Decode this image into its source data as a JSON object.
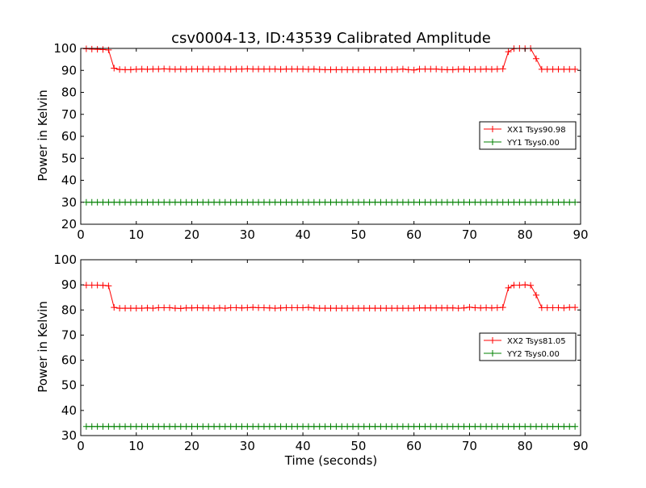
{
  "chart_data": [
    {
      "type": "line",
      "title": "csv0004-13, ID:43539 Calibrated Amplitude",
      "xlabel": "",
      "ylabel": "Power in Kelvin",
      "xlim": [
        0,
        90
      ],
      "ylim": [
        20,
        100
      ],
      "xticks": [
        0,
        10,
        20,
        30,
        40,
        50,
        60,
        70,
        80,
        90
      ],
      "yticks": [
        20,
        30,
        40,
        50,
        60,
        70,
        80,
        90,
        100
      ],
      "legend_position": "right",
      "series": [
        {
          "name": "XX1 Tsys90.98",
          "color": "#ff0000",
          "x": [
            1,
            2,
            3,
            4,
            5,
            6,
            7,
            8,
            9,
            10,
            11,
            12,
            13,
            14,
            15,
            16,
            17,
            18,
            19,
            20,
            21,
            22,
            23,
            24,
            25,
            26,
            27,
            28,
            29,
            30,
            31,
            32,
            33,
            34,
            35,
            36,
            37,
            38,
            39,
            40,
            41,
            42,
            43,
            44,
            45,
            46,
            47,
            48,
            49,
            50,
            51,
            52,
            53,
            54,
            55,
            56,
            57,
            58,
            59,
            60,
            61,
            62,
            63,
            64,
            65,
            66,
            67,
            68,
            69,
            70,
            71,
            72,
            73,
            74,
            75,
            76,
            77,
            78,
            79,
            80,
            81,
            82,
            83,
            84,
            85,
            86,
            87,
            88,
            89
          ],
          "y": [
            99.8,
            99.7,
            99.6,
            99.5,
            99.3,
            91.0,
            90.4,
            90.3,
            90.3,
            90.5,
            90.6,
            90.5,
            90.6,
            90.6,
            90.7,
            90.6,
            90.5,
            90.6,
            90.5,
            90.6,
            90.6,
            90.6,
            90.6,
            90.5,
            90.6,
            90.6,
            90.5,
            90.6,
            90.6,
            90.7,
            90.6,
            90.6,
            90.6,
            90.6,
            90.6,
            90.5,
            90.6,
            90.6,
            90.6,
            90.6,
            90.5,
            90.6,
            90.4,
            90.3,
            90.3,
            90.3,
            90.3,
            90.3,
            90.3,
            90.3,
            90.3,
            90.3,
            90.3,
            90.3,
            90.3,
            90.3,
            90.4,
            90.6,
            90.3,
            90.2,
            90.6,
            90.6,
            90.6,
            90.6,
            90.4,
            90.3,
            90.3,
            90.5,
            90.6,
            90.4,
            90.5,
            90.5,
            90.6,
            90.5,
            90.6,
            90.7,
            98.5,
            99.9,
            100.0,
            99.9,
            100.0,
            95.3,
            90.5,
            90.5,
            90.5,
            90.5,
            90.5,
            90.5,
            90.5
          ]
        },
        {
          "name": "YY1 Tsys0.00",
          "color": "#008000",
          "x": [
            1,
            2,
            3,
            4,
            5,
            6,
            7,
            8,
            9,
            10,
            11,
            12,
            13,
            14,
            15,
            16,
            17,
            18,
            19,
            20,
            21,
            22,
            23,
            24,
            25,
            26,
            27,
            28,
            29,
            30,
            31,
            32,
            33,
            34,
            35,
            36,
            37,
            38,
            39,
            40,
            41,
            42,
            43,
            44,
            45,
            46,
            47,
            48,
            49,
            50,
            51,
            52,
            53,
            54,
            55,
            56,
            57,
            58,
            59,
            60,
            61,
            62,
            63,
            64,
            65,
            66,
            67,
            68,
            69,
            70,
            71,
            72,
            73,
            74,
            75,
            76,
            77,
            78,
            79,
            80,
            81,
            82,
            83,
            84,
            85,
            86,
            87,
            88,
            89
          ],
          "y": [
            30,
            30,
            30,
            30,
            30,
            30,
            30,
            30,
            30,
            30,
            30,
            30,
            30,
            30,
            30,
            30,
            30,
            30,
            30,
            30,
            30,
            30,
            30,
            30,
            30,
            30,
            30,
            30,
            30,
            30,
            30,
            30,
            30,
            30,
            30,
            30,
            30,
            30,
            30,
            30,
            30,
            30,
            30,
            30,
            30,
            30,
            30,
            30,
            30,
            30,
            30,
            30,
            30,
            30,
            30,
            30,
            30,
            30,
            30,
            30,
            30,
            30,
            30,
            30,
            30,
            30,
            30,
            30,
            30,
            30,
            30,
            30,
            30,
            30,
            30,
            30,
            30,
            30,
            30,
            30,
            30,
            30,
            30,
            30,
            30,
            30,
            30,
            30,
            30
          ]
        }
      ]
    },
    {
      "type": "line",
      "title": "",
      "xlabel": "Time (seconds)",
      "ylabel": "Power in Kelvin",
      "xlim": [
        0,
        90
      ],
      "ylim": [
        30,
        100
      ],
      "xticks": [
        0,
        10,
        20,
        30,
        40,
        50,
        60,
        70,
        80,
        90
      ],
      "yticks": [
        30,
        40,
        50,
        60,
        70,
        80,
        90,
        100
      ],
      "legend_position": "right",
      "series": [
        {
          "name": "XX2 Tsys81.05",
          "color": "#ff0000",
          "x": [
            1,
            2,
            3,
            4,
            5,
            6,
            7,
            8,
            9,
            10,
            11,
            12,
            13,
            14,
            15,
            16,
            17,
            18,
            19,
            20,
            21,
            22,
            23,
            24,
            25,
            26,
            27,
            28,
            29,
            30,
            31,
            32,
            33,
            34,
            35,
            36,
            37,
            38,
            39,
            40,
            41,
            42,
            43,
            44,
            45,
            46,
            47,
            48,
            49,
            50,
            51,
            52,
            53,
            54,
            55,
            56,
            57,
            58,
            59,
            60,
            61,
            62,
            63,
            64,
            65,
            66,
            67,
            68,
            69,
            70,
            71,
            72,
            73,
            74,
            75,
            76,
            77,
            78,
            79,
            80,
            81,
            82,
            83,
            84,
            85,
            86,
            87,
            88,
            89
          ],
          "y": [
            89.9,
            89.9,
            89.9,
            89.8,
            89.6,
            81.0,
            80.7,
            80.7,
            80.7,
            80.7,
            80.7,
            80.8,
            80.7,
            80.9,
            80.9,
            80.9,
            80.7,
            80.6,
            80.8,
            80.8,
            80.9,
            80.8,
            80.8,
            80.7,
            80.8,
            80.7,
            80.9,
            80.9,
            80.8,
            80.9,
            81.0,
            80.9,
            80.9,
            80.8,
            80.7,
            80.8,
            80.9,
            80.9,
            80.9,
            80.9,
            81.0,
            80.8,
            80.7,
            80.7,
            80.7,
            80.7,
            80.7,
            80.7,
            80.7,
            80.7,
            80.7,
            80.7,
            80.7,
            80.7,
            80.7,
            80.7,
            80.7,
            80.7,
            80.7,
            80.7,
            80.8,
            80.8,
            80.8,
            80.8,
            80.8,
            80.8,
            80.8,
            80.7,
            80.8,
            81.1,
            80.9,
            80.8,
            80.9,
            80.8,
            80.9,
            81.0,
            88.8,
            89.9,
            89.9,
            90.0,
            89.8,
            85.9,
            80.9,
            80.9,
            80.9,
            80.9,
            80.8,
            81.0,
            81.0
          ]
        },
        {
          "name": "YY2 Tsys0.00",
          "color": "#008000",
          "x": [
            1,
            2,
            3,
            4,
            5,
            6,
            7,
            8,
            9,
            10,
            11,
            12,
            13,
            14,
            15,
            16,
            17,
            18,
            19,
            20,
            21,
            22,
            23,
            24,
            25,
            26,
            27,
            28,
            29,
            30,
            31,
            32,
            33,
            34,
            35,
            36,
            37,
            38,
            39,
            40,
            41,
            42,
            43,
            44,
            45,
            46,
            47,
            48,
            49,
            50,
            51,
            52,
            53,
            54,
            55,
            56,
            57,
            58,
            59,
            60,
            61,
            62,
            63,
            64,
            65,
            66,
            67,
            68,
            69,
            70,
            71,
            72,
            73,
            74,
            75,
            76,
            77,
            78,
            79,
            80,
            81,
            82,
            83,
            84,
            85,
            86,
            87,
            88,
            89
          ],
          "y": [
            33.6,
            33.6,
            33.6,
            33.6,
            33.6,
            33.6,
            33.6,
            33.6,
            33.6,
            33.6,
            33.6,
            33.6,
            33.6,
            33.6,
            33.6,
            33.6,
            33.6,
            33.6,
            33.6,
            33.6,
            33.6,
            33.6,
            33.6,
            33.6,
            33.6,
            33.6,
            33.6,
            33.6,
            33.6,
            33.6,
            33.6,
            33.6,
            33.6,
            33.6,
            33.6,
            33.6,
            33.6,
            33.6,
            33.6,
            33.6,
            33.6,
            33.6,
            33.6,
            33.6,
            33.6,
            33.6,
            33.6,
            33.6,
            33.6,
            33.6,
            33.6,
            33.6,
            33.6,
            33.6,
            33.6,
            33.6,
            33.6,
            33.6,
            33.6,
            33.6,
            33.6,
            33.6,
            33.6,
            33.6,
            33.6,
            33.6,
            33.6,
            33.6,
            33.6,
            33.6,
            33.6,
            33.6,
            33.6,
            33.6,
            33.6,
            33.6,
            33.6,
            33.6,
            33.6,
            33.6,
            33.6,
            33.6,
            33.6,
            33.6,
            33.6,
            33.6,
            33.6,
            33.6,
            33.6
          ]
        }
      ]
    }
  ]
}
